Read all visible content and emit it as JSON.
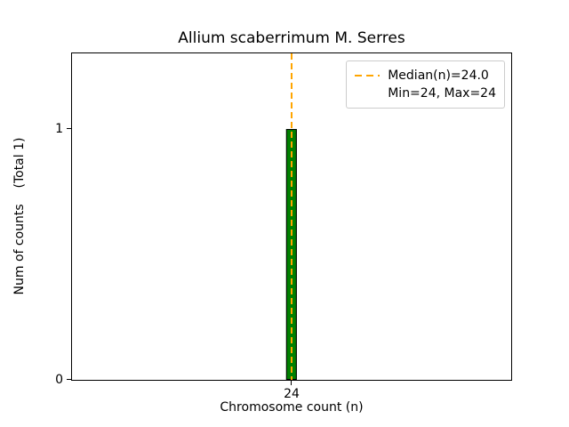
{
  "chart_data": {
    "type": "bar",
    "title": "Allium scaberrimum M. Serres",
    "xlabel": "Chromosome count (n)",
    "ylabel": "Num of counts    (Total 1)",
    "categories": [
      24
    ],
    "values": [
      1
    ],
    "total_counts": 1,
    "xlim": [
      23,
      25
    ],
    "ylim": [
      0,
      1.3
    ],
    "xticks": [
      24
    ],
    "yticks": [
      0,
      1
    ],
    "bar_width": 0.05,
    "bar_color": "#008000",
    "bar_edge_color": "#000000",
    "median_line": {
      "x": 24,
      "value_label": "24.0",
      "color": "#ffa500",
      "style": "dashed"
    },
    "grid": false,
    "legend": {
      "position": "upper right",
      "entries": [
        {
          "sample": "dashed-line",
          "color": "#ffa500",
          "label": "Median(n)=24.0"
        },
        {
          "sample": "none",
          "label": "Min=24, Max=24"
        }
      ]
    }
  }
}
